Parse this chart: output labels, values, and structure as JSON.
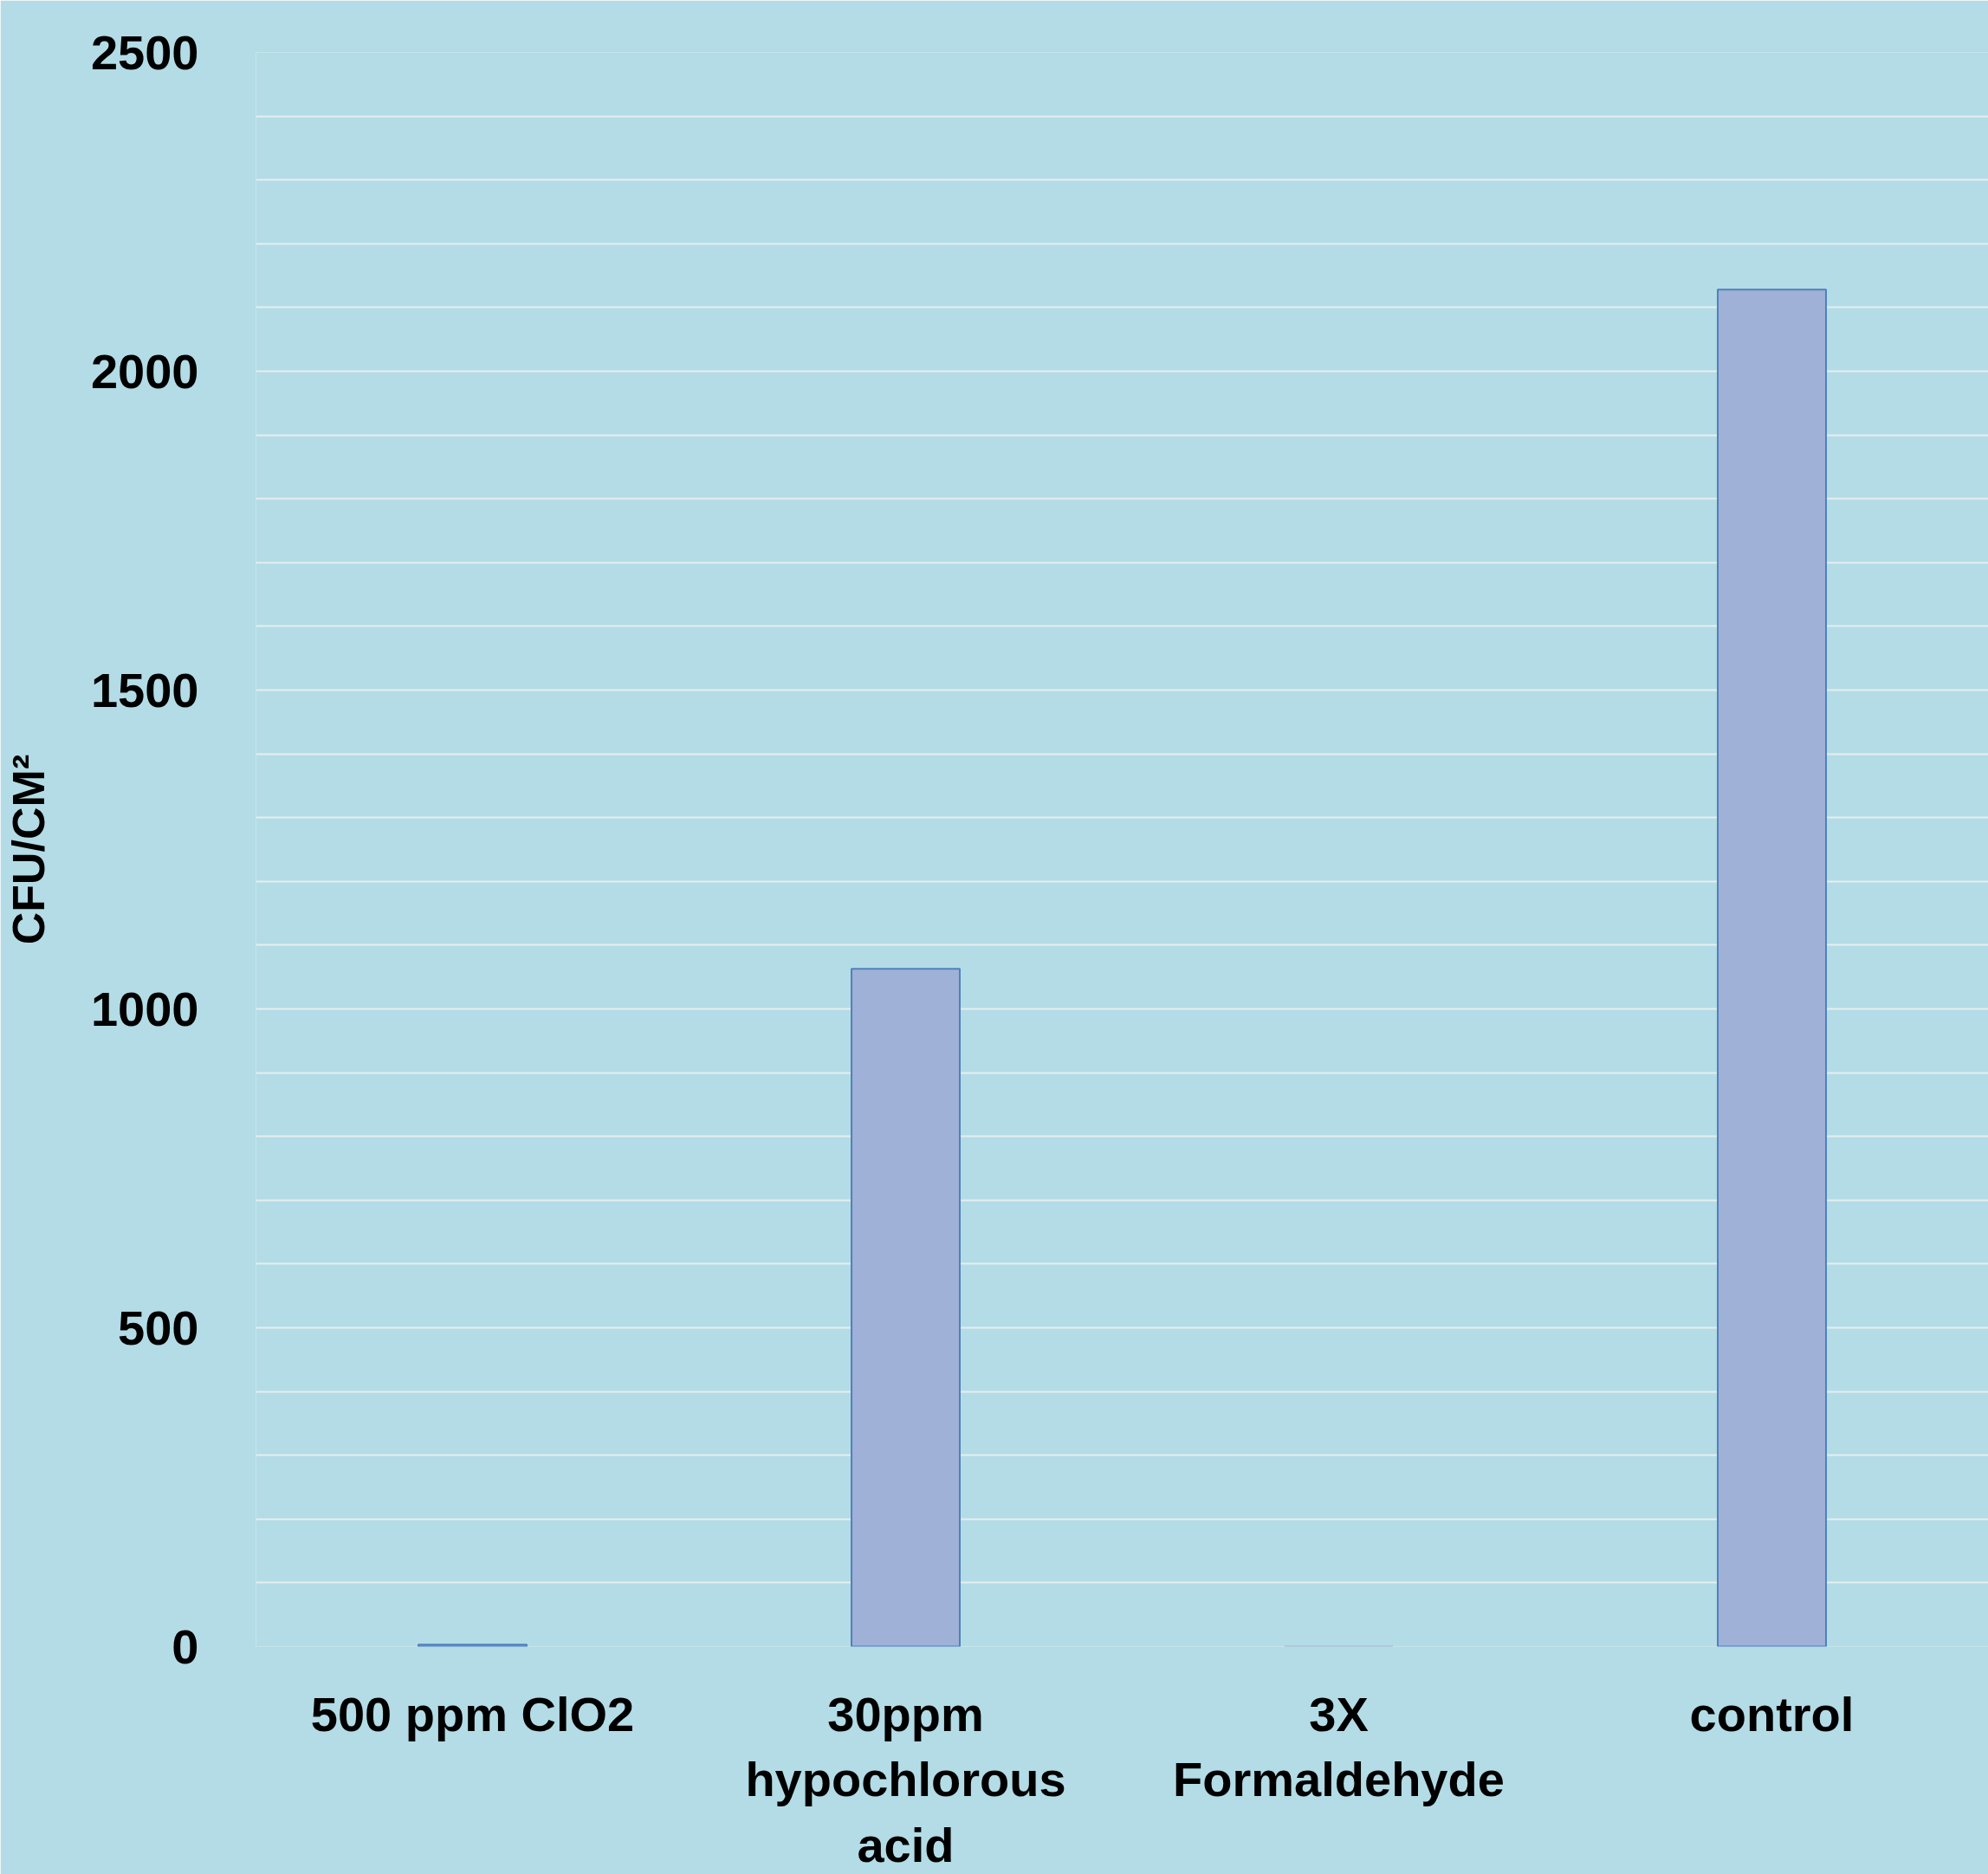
{
  "chart_data": {
    "type": "bar",
    "ylabel": "CFU/CM²",
    "categories": [
      "500 ppm ClO2",
      "30ppm hypochlorous acid",
      "3X Formaldehyde",
      "control"
    ],
    "values": [
      3,
      1063,
      0,
      2128
    ],
    "color": "#9fb1d6",
    "ylim": [
      0,
      2500
    ],
    "yticks": [
      0,
      {
        "value": 100,
        "label": null
      },
      {
        "value": 200,
        "label": null
      },
      {
        "value": 300,
        "label": null
      },
      {
        "value": 400,
        "label": null
      },
      500,
      {
        "value": 600,
        "label": null
      },
      {
        "value": 700,
        "label": null
      },
      {
        "value": 800,
        "label": null
      },
      {
        "value": 900,
        "label": null
      },
      1000,
      {
        "value": 1100,
        "label": null
      },
      {
        "value": 1200,
        "label": null
      },
      {
        "value": 1300,
        "label": null
      },
      {
        "value": 1400,
        "label": null
      },
      1500,
      {
        "value": 1600,
        "label": null
      },
      {
        "value": 1700,
        "label": null
      },
      {
        "value": 1800,
        "label": null
      },
      {
        "value": 1900,
        "label": null
      },
      2000,
      {
        "value": 2100,
        "label": null
      },
      {
        "value": 2200,
        "label": null
      },
      {
        "value": 2300,
        "label": null
      },
      {
        "value": 2400,
        "label": null
      },
      2500
    ],
    "grid": "y"
  }
}
